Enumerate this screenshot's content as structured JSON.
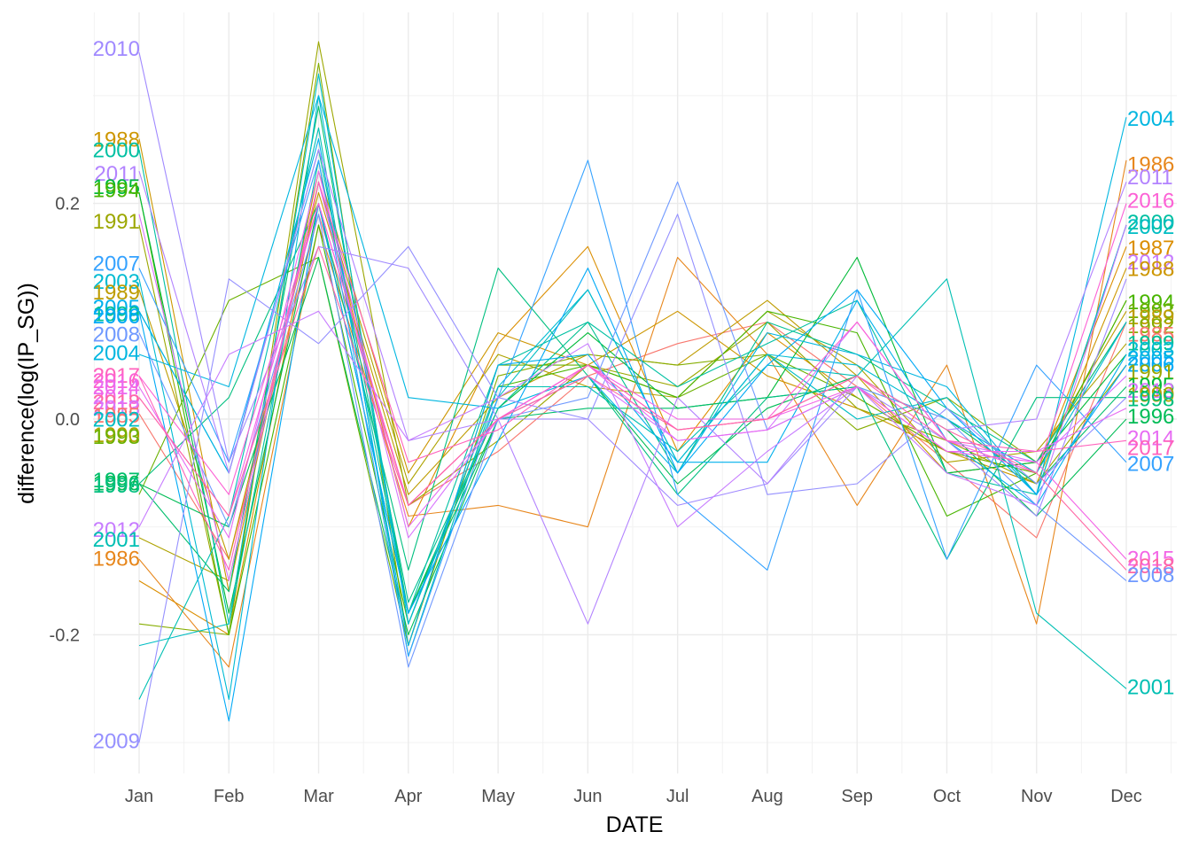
{
  "chart_data": {
    "type": "line",
    "title": "",
    "xlabel": "DATE",
    "ylabel": "difference(log(IP_SG))",
    "categories": [
      "Jan",
      "Feb",
      "Mar",
      "Apr",
      "May",
      "Jun",
      "Jul",
      "Aug",
      "Sep",
      "Oct",
      "Nov",
      "Dec"
    ],
    "ylim": [
      -0.33,
      0.375
    ],
    "yticks": [
      "0.2",
      "0.0",
      "-0.2"
    ],
    "yticks_values": [
      0.2,
      0.0,
      -0.2
    ],
    "grid": true,
    "legend": "none",
    "series": [
      {
        "name": "1985",
        "color": "#F8766D",
        "values": [
          0.005,
          -0.13,
          0.19,
          -0.08,
          -0.03,
          0.04,
          0.07,
          0.09,
          0.03,
          -0.04,
          -0.11,
          0.09
        ]
      },
      {
        "name": "1986",
        "color": "#E7861B",
        "values": [
          -0.13,
          -0.23,
          0.18,
          -0.09,
          -0.08,
          -0.1,
          0.15,
          0.06,
          -0.08,
          0.05,
          -0.19,
          0.24
        ]
      },
      {
        "name": "1987",
        "color": "#DB8E00",
        "values": [
          -0.15,
          -0.2,
          0.22,
          -0.1,
          0.07,
          0.16,
          -0.03,
          0.08,
          0.02,
          -0.03,
          -0.05,
          0.16
        ]
      },
      {
        "name": "1988",
        "color": "#CD9600",
        "values": [
          0.26,
          -0.16,
          0.23,
          -0.05,
          0.08,
          0.05,
          0.1,
          0.04,
          0.01,
          -0.03,
          -0.06,
          0.14
        ]
      },
      {
        "name": "1989",
        "color": "#BE9C00",
        "values": [
          0.12,
          -0.13,
          0.21,
          -0.07,
          0.02,
          0.06,
          0.05,
          0.11,
          0.04,
          -0.05,
          -0.04,
          0.1
        ]
      },
      {
        "name": "1990",
        "color": "#AEA200",
        "values": [
          -0.11,
          -0.15,
          0.22,
          -0.06,
          0.06,
          0.03,
          0.02,
          0.1,
          0.05,
          -0.04,
          -0.03,
          0.07
        ]
      },
      {
        "name": "1991",
        "color": "#9CA700",
        "values": [
          0.18,
          -0.2,
          0.35,
          -0.08,
          -0.02,
          0.05,
          0.03,
          0.09,
          0.01,
          -0.02,
          -0.06,
          0.05
        ]
      },
      {
        "name": "1992",
        "color": "#85AD00",
        "values": [
          -0.19,
          -0.2,
          0.33,
          -0.21,
          0.04,
          0.06,
          0.05,
          0.06,
          -0.01,
          0.02,
          -0.04,
          0.09
        ]
      },
      {
        "name": "1993",
        "color": "#6BB100",
        "values": [
          -0.07,
          0.11,
          0.15,
          -0.21,
          0.05,
          0.05,
          0.02,
          0.06,
          0.02,
          -0.03,
          -0.05,
          0.11
        ]
      },
      {
        "name": "1994",
        "color": "#49B500",
        "values": [
          0.21,
          -0.2,
          0.18,
          -0.19,
          0.03,
          0.05,
          0.02,
          0.1,
          0.08,
          -0.09,
          -0.05,
          0.11
        ]
      },
      {
        "name": "1995",
        "color": "#00BA38",
        "values": [
          0.21,
          -0.18,
          0.2,
          -0.18,
          0.01,
          0.08,
          0.01,
          0.02,
          0.15,
          -0.05,
          -0.04,
          0.06
        ]
      },
      {
        "name": "1996",
        "color": "#00BC56",
        "values": [
          -0.06,
          -0.1,
          0.15,
          -0.2,
          0.0,
          0.04,
          -0.06,
          0.01,
          0.04,
          -0.01,
          -0.09,
          0.0
        ]
      },
      {
        "name": "1997",
        "color": "#00BE6C",
        "values": [
          -0.06,
          -0.16,
          0.29,
          -0.18,
          0.0,
          0.01,
          0.01,
          0.02,
          0.03,
          0.0,
          -0.06,
          0.03
        ]
      },
      {
        "name": "1998",
        "color": "#00BF7F",
        "values": [
          -0.06,
          0.02,
          0.2,
          -0.14,
          0.14,
          0.04,
          -0.07,
          0.02,
          0.03,
          -0.13,
          0.02,
          0.02
        ]
      },
      {
        "name": "1999",
        "color": "#00C091",
        "values": [
          0.1,
          -0.05,
          0.25,
          -0.17,
          0.01,
          0.09,
          -0.05,
          0.09,
          0.06,
          0.01,
          -0.04,
          0.09
        ]
      },
      {
        "name": "2000",
        "color": "#00C0A2",
        "values": [
          0.25,
          -0.19,
          0.24,
          -0.18,
          0.05,
          0.09,
          0.03,
          0.07,
          0.11,
          -0.05,
          -0.07,
          0.18
        ]
      },
      {
        "name": "2001",
        "color": "#00BFB3",
        "values": [
          -0.26,
          -0.09,
          0.27,
          -0.22,
          0.03,
          0.03,
          -0.03,
          0.05,
          0.04,
          0.13,
          -0.18,
          -0.25
        ]
      },
      {
        "name": "2002",
        "color": "#00BDC3",
        "values": [
          -0.21,
          -0.19,
          0.32,
          -0.19,
          0.02,
          0.12,
          -0.04,
          0.06,
          0.0,
          0.02,
          -0.07,
          0.18
        ]
      },
      {
        "name": "2003",
        "color": "#00BBD2",
        "values": [
          0.13,
          -0.26,
          0.3,
          -0.19,
          0.03,
          0.12,
          -0.04,
          0.06,
          0.05,
          0.0,
          -0.05,
          0.09
        ]
      },
      {
        "name": "2004",
        "color": "#00B6E0",
        "values": [
          0.06,
          0.03,
          0.3,
          0.02,
          0.01,
          0.04,
          -0.05,
          0.08,
          0.06,
          0.03,
          -0.07,
          0.28
        ]
      },
      {
        "name": "2005",
        "color": "#00B0EC",
        "values": [
          0.1,
          -0.05,
          0.26,
          -0.21,
          0.05,
          0.06,
          -0.04,
          -0.04,
          0.11,
          -0.02,
          -0.08,
          0.06
        ]
      },
      {
        "name": "2006",
        "color": "#00A9F6",
        "values": [
          0.1,
          -0.28,
          0.2,
          -0.18,
          -0.02,
          0.14,
          -0.05,
          0.05,
          0.12,
          0.01,
          -0.07,
          0.05
        ]
      },
      {
        "name": "2007",
        "color": "#35A2FF",
        "values": [
          0.14,
          -0.04,
          0.24,
          -0.22,
          0.02,
          0.24,
          -0.07,
          -0.14,
          0.12,
          -0.13,
          0.05,
          -0.04
        ]
      },
      {
        "name": "2008",
        "color": "#6F99FF",
        "values": [
          0.08,
          -0.1,
          0.19,
          -0.23,
          0.0,
          0.02,
          0.22,
          -0.01,
          0.03,
          0.0,
          -0.08,
          -0.15
        ]
      },
      {
        "name": "2009",
        "color": "#9590FF",
        "values": [
          -0.3,
          0.13,
          0.07,
          0.16,
          0.02,
          0.0,
          0.19,
          -0.07,
          -0.06,
          0.01,
          -0.06,
          0.02
        ]
      },
      {
        "name": "2010",
        "color": "#A089FF",
        "values": [
          0.34,
          -0.04,
          0.16,
          0.14,
          0.0,
          0.0,
          -0.08,
          -0.06,
          0.03,
          -0.02,
          -0.09,
          0.13
        ]
      },
      {
        "name": "2011",
        "color": "#B383FF",
        "values": [
          0.23,
          -0.05,
          0.25,
          -0.02,
          0.0,
          -0.19,
          0.02,
          -0.06,
          0.04,
          -0.01,
          0.0,
          0.22
        ]
      },
      {
        "name": "2012",
        "color": "#C77CFF",
        "values": [
          -0.1,
          0.06,
          0.1,
          -0.02,
          0.02,
          0.07,
          -0.1,
          -0.03,
          0.03,
          -0.05,
          -0.08,
          0.18
        ]
      },
      {
        "name": "2013",
        "color": "#D874FD",
        "values": [
          0.19,
          -0.15,
          0.22,
          -0.11,
          0.0,
          0.04,
          -0.02,
          -0.01,
          0.09,
          -0.02,
          -0.04,
          0.04
        ]
      },
      {
        "name": "2014",
        "color": "#E76BF3",
        "values": [
          0.03,
          -0.11,
          0.23,
          -0.1,
          0.0,
          0.05,
          -0.02,
          -0.01,
          0.03,
          -0.03,
          -0.03,
          0.01
        ]
      },
      {
        "name": "2015",
        "color": "#F365E6",
        "values": [
          0.02,
          -0.09,
          0.2,
          -0.08,
          0.0,
          0.05,
          0.0,
          0.0,
          0.03,
          -0.03,
          -0.04,
          -0.13
        ]
      },
      {
        "name": "2016",
        "color": "#FC61D5",
        "values": [
          0.04,
          -0.07,
          0.2,
          -0.08,
          0.0,
          0.05,
          -0.01,
          0.0,
          0.09,
          -0.02,
          -0.05,
          0.2
        ]
      },
      {
        "name": "2017",
        "color": "#FF62BC",
        "values": [
          0.04,
          -0.14,
          0.22,
          -0.04,
          -0.01,
          0.05,
          -0.01,
          0.0,
          0.04,
          -0.02,
          -0.03,
          -0.02
        ]
      },
      {
        "name": "2018",
        "color": "#FF67A4",
        "values": [
          0.02,
          -0.09,
          0.16,
          -0.08,
          0.0,
          0.04,
          -0.01,
          0.0,
          0.04,
          -0.01,
          -0.05,
          -0.14
        ]
      }
    ],
    "left_labels": [
      {
        "text": "2010",
        "y": 0.343,
        "color": "#A089FF"
      },
      {
        "text": "1988",
        "y": 0.259,
        "color": "#CD9600"
      },
      {
        "text": "2000",
        "y": 0.249,
        "color": "#00C0A2"
      },
      {
        "text": "2011",
        "y": 0.227,
        "color": "#B383FF"
      },
      {
        "text": "1995",
        "y": 0.215,
        "color": "#00BA38"
      },
      {
        "text": "1994",
        "y": 0.212,
        "color": "#49B500"
      },
      {
        "text": "1991",
        "y": 0.183,
        "color": "#9CA700"
      },
      {
        "text": "2007",
        "y": 0.144,
        "color": "#35A2FF"
      },
      {
        "text": "2003",
        "y": 0.127,
        "color": "#00BBD2"
      },
      {
        "text": "1989",
        "y": 0.117,
        "color": "#BE9C00"
      },
      {
        "text": "2005",
        "y": 0.103,
        "color": "#00B0EC"
      },
      {
        "text": "1999",
        "y": 0.097,
        "color": "#00C091"
      },
      {
        "text": "2006",
        "y": 0.095,
        "color": "#00A9F6"
      },
      {
        "text": "2008",
        "y": 0.078,
        "color": "#6F99FF"
      },
      {
        "text": "2004",
        "y": 0.061,
        "color": "#00B6E0"
      },
      {
        "text": "2017",
        "y": 0.04,
        "color": "#FF62BC"
      },
      {
        "text": "2016",
        "y": 0.035,
        "color": "#FC61D5"
      },
      {
        "text": "2014",
        "y": 0.029,
        "color": "#E76BF3"
      },
      {
        "text": "2015",
        "y": 0.02,
        "color": "#F365E6"
      },
      {
        "text": "2018",
        "y": 0.015,
        "color": "#FF67A4"
      },
      {
        "text": "2013",
        "y": 0.01,
        "color": "#D874FD"
      },
      {
        "text": "1985",
        "y": 0.003,
        "color": "#F8766D"
      },
      {
        "text": "2002",
        "y": -0.001,
        "color": "#00BDC3"
      },
      {
        "text": "1990",
        "y": -0.015,
        "color": "#AEA200"
      },
      {
        "text": "1993",
        "y": -0.017,
        "color": "#6BB100"
      },
      {
        "text": "1997",
        "y": -0.057,
        "color": "#00BE6C"
      },
      {
        "text": "1996",
        "y": -0.06,
        "color": "#00BC56"
      },
      {
        "text": "1998",
        "y": -0.062,
        "color": "#00BF7F"
      },
      {
        "text": "2012",
        "y": -0.103,
        "color": "#C77CFF"
      },
      {
        "text": "2001",
        "y": -0.112,
        "color": "#00BFB3"
      },
      {
        "text": "1986",
        "y": -0.13,
        "color": "#E7861B"
      },
      {
        "text": "2009",
        "y": -0.299,
        "color": "#9590FF"
      }
    ],
    "right_labels": [
      {
        "text": "2004",
        "y": 0.278,
        "color": "#00B6E0"
      },
      {
        "text": "1986",
        "y": 0.236,
        "color": "#E7861B"
      },
      {
        "text": "2011",
        "y": 0.224,
        "color": "#B383FF"
      },
      {
        "text": "2016",
        "y": 0.202,
        "color": "#FC61D5"
      },
      {
        "text": "2000",
        "y": 0.182,
        "color": "#00C0A2"
      },
      {
        "text": "2002",
        "y": 0.178,
        "color": "#00BDC3"
      },
      {
        "text": "1987",
        "y": 0.158,
        "color": "#DB8E00"
      },
      {
        "text": "2012",
        "y": 0.145,
        "color": "#C77CFF"
      },
      {
        "text": "1988",
        "y": 0.139,
        "color": "#CD9600"
      },
      {
        "text": "1994",
        "y": 0.108,
        "color": "#49B500"
      },
      {
        "text": "1993",
        "y": 0.1,
        "color": "#6BB100"
      },
      {
        "text": "1989",
        "y": 0.094,
        "color": "#BE9C00"
      },
      {
        "text": "1992",
        "y": 0.086,
        "color": "#85AD00"
      },
      {
        "text": "1985",
        "y": 0.078,
        "color": "#F8766D"
      },
      {
        "text": "1999",
        "y": 0.07,
        "color": "#00C091"
      },
      {
        "text": "2003",
        "y": 0.064,
        "color": "#00BBD2"
      },
      {
        "text": "2005",
        "y": 0.056,
        "color": "#00B0EC"
      },
      {
        "text": "2006",
        "y": 0.05,
        "color": "#00A9F6"
      },
      {
        "text": "1991",
        "y": 0.043,
        "color": "#9CA700"
      },
      {
        "text": "1995",
        "y": 0.031,
        "color": "#00BA38"
      },
      {
        "text": "2013",
        "y": 0.026,
        "color": "#D874FD"
      },
      {
        "text": "1990",
        "y": 0.022,
        "color": "#AEA200"
      },
      {
        "text": "1998",
        "y": 0.018,
        "color": "#00BF7F"
      },
      {
        "text": "1996",
        "y": 0.002,
        "color": "#00BC56"
      },
      {
        "text": "2014",
        "y": -0.018,
        "color": "#E76BF3"
      },
      {
        "text": "2017",
        "y": -0.027,
        "color": "#FF62BC"
      },
      {
        "text": "2007",
        "y": -0.042,
        "color": "#35A2FF"
      },
      {
        "text": "2015",
        "y": -0.13,
        "color": "#F365E6"
      },
      {
        "text": "2018",
        "y": -0.137,
        "color": "#FF67A4"
      },
      {
        "text": "2008",
        "y": -0.145,
        "color": "#6F99FF"
      },
      {
        "text": "2001",
        "y": -0.249,
        "color": "#00BFB3"
      }
    ]
  }
}
